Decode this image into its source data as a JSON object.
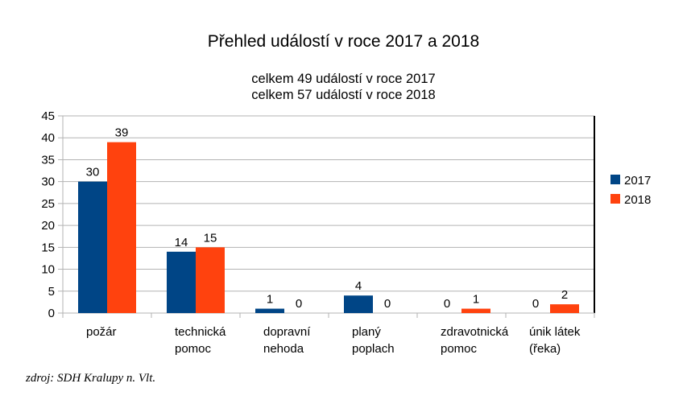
{
  "chart_data": {
    "type": "bar",
    "title": "Přehled událostí v roce 2017 a 2018",
    "subtitles": [
      "celkem 49 událostí v roce 2017",
      "celkem 57 událostí v roce 2018"
    ],
    "categories": [
      [
        "požár"
      ],
      [
        "technická",
        "pomoc"
      ],
      [
        "dopravní",
        "nehoda"
      ],
      [
        "planý",
        "poplach"
      ],
      [
        "zdravotnická",
        "pomoc"
      ],
      [
        "únik látek",
        "(řeka)"
      ]
    ],
    "series": [
      {
        "name": "2017",
        "color": "#004586",
        "values": [
          30,
          14,
          1,
          4,
          0,
          0
        ]
      },
      {
        "name": "2018",
        "color": "#ff420e",
        "values": [
          39,
          15,
          0,
          0,
          1,
          2
        ]
      }
    ],
    "ylim": [
      0,
      45
    ],
    "ytick_step": 5,
    "grid": true,
    "legend_position": "right",
    "data_labels": true
  },
  "source_note": "zdroj: SDH Kralupy n. Vlt."
}
